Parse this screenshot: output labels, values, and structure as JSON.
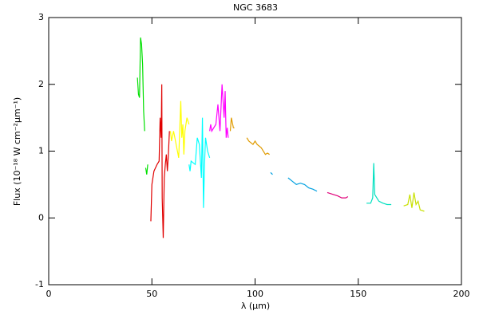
{
  "chart_data": {
    "type": "line",
    "title": "NGC 3683",
    "x_label": "λ (μm)",
    "y_label": "Flux (10⁻¹⁸ W cm⁻²μm⁻¹)",
    "xlim": [
      0,
      200
    ],
    "xticks": [
      0,
      50,
      100,
      150,
      200
    ],
    "ylim": [
      -1,
      3
    ],
    "yticks": [
      -1,
      0,
      1,
      2,
      3
    ],
    "series": [
      {
        "color": "#00e000",
        "x": [
          43,
          43.5,
          44,
          44.5,
          45,
          45.5,
          46,
          46.5,
          46.8,
          47,
          47.5,
          48
        ],
        "values": [
          2.1,
          1.85,
          1.8,
          2.7,
          2.6,
          2.3,
          1.6,
          1.3,
          null,
          0.75,
          0.65,
          0.8
        ]
      },
      {
        "color": "#e00000",
        "x": [
          49.5,
          50,
          51,
          52.5,
          53.5,
          54,
          54.5,
          54.8,
          55,
          55.5,
          56,
          56.5,
          57,
          57.5,
          58,
          58.5
        ],
        "values": [
          -0.05,
          0.5,
          0.7,
          0.8,
          0.85,
          1.5,
          1.2,
          2.0,
          0.3,
          -0.3,
          0.6,
          0.8,
          0.95,
          0.7,
          0.95,
          1.3
        ]
      },
      {
        "color": "#ffff00",
        "x": [
          59,
          59.5,
          60.5,
          63,
          64,
          64.5,
          65,
          65.5,
          66,
          67,
          68
        ],
        "values": [
          1.3,
          1.15,
          1.3,
          0.9,
          1.75,
          1.2,
          1.4,
          0.95,
          1.3,
          1.5,
          1.4
        ]
      },
      {
        "color": "#00ffff",
        "x": [
          68,
          68.5,
          69,
          71,
          72,
          73,
          74,
          74.5,
          75,
          75.5,
          76,
          77,
          78
        ],
        "values": [
          0.8,
          0.7,
          0.85,
          0.8,
          1.2,
          1.1,
          0.6,
          1.5,
          0.15,
          0.8,
          1.2,
          1.0,
          0.9
        ]
      },
      {
        "color": "#ff00ff",
        "x": [
          78,
          78.5,
          79,
          81,
          82,
          83,
          84,
          85,
          85.5,
          86,
          86.5,
          87
        ],
        "values": [
          1.3,
          1.4,
          1.3,
          1.4,
          1.7,
          1.3,
          2.0,
          1.5,
          1.9,
          1.2,
          1.35,
          1.2
        ]
      },
      {
        "color": "#e09b00",
        "x": [
          88,
          88.5,
          89.5,
          90,
          93,
          96,
          97,
          99,
          100,
          101,
          103,
          105,
          106,
          107
        ],
        "values": [
          1.3,
          1.5,
          1.35,
          1.35,
          null,
          1.2,
          1.15,
          1.1,
          1.15,
          1.1,
          1.05,
          0.95,
          0.97,
          0.95
        ]
      },
      {
        "color": "#00a0e0",
        "x": [
          107.5,
          108.5,
          112,
          116,
          118,
          120,
          122,
          124,
          126,
          128,
          130
        ],
        "values": [
          0.68,
          0.65,
          null,
          0.6,
          0.55,
          0.5,
          0.52,
          0.5,
          0.45,
          0.43,
          0.4
        ]
      },
      {
        "color": "#e0007a",
        "x": [
          135,
          138,
          140,
          142,
          144,
          145
        ],
        "values": [
          0.38,
          0.35,
          0.33,
          0.3,
          0.3,
          0.32
        ]
      },
      {
        "color": "#00e0c0",
        "x": [
          154,
          156,
          157,
          157.5,
          158,
          160,
          162,
          164,
          166
        ],
        "values": [
          0.22,
          0.22,
          0.3,
          0.82,
          0.35,
          0.25,
          0.22,
          0.2,
          0.2
        ]
      },
      {
        "color": "#c8e000",
        "x": [
          172,
          174,
          175,
          176,
          177,
          178,
          179,
          180,
          182
        ],
        "values": [
          0.18,
          0.2,
          0.35,
          0.15,
          0.38,
          0.2,
          0.25,
          0.12,
          0.1
        ]
      }
    ]
  }
}
